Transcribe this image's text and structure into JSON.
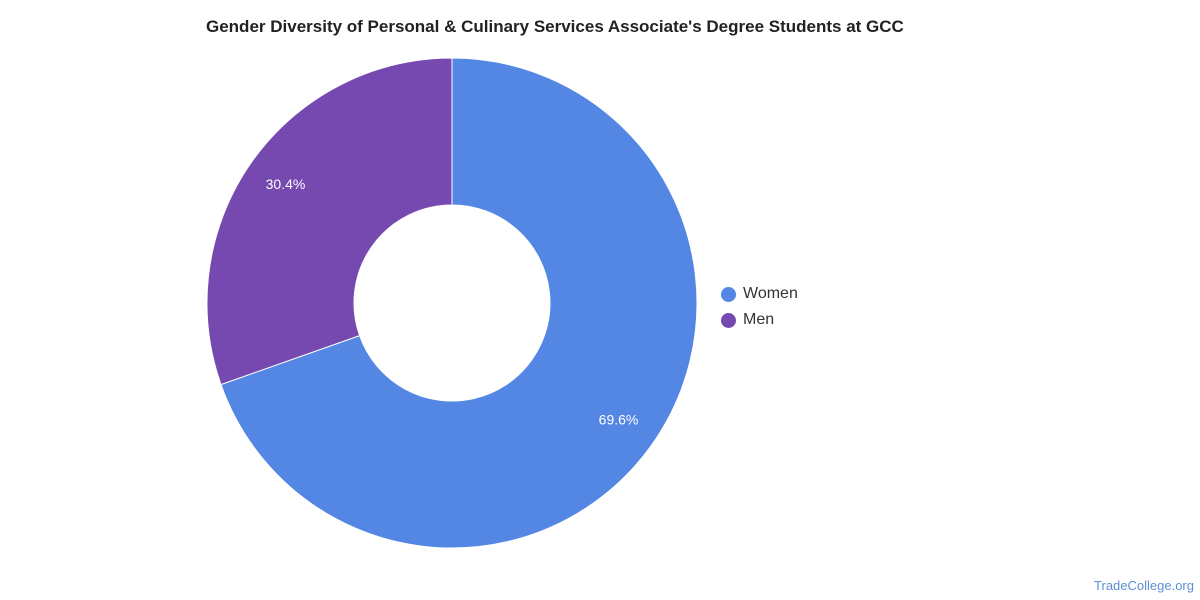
{
  "chart_data": {
    "type": "pie",
    "title": "Gender Diversity of Personal & Culinary Services Associate's Degree Students at GCC",
    "categories": [
      "Women",
      "Men"
    ],
    "values": [
      69.6,
      30.4
    ],
    "value_labels": [
      "69.6%",
      "30.4%"
    ],
    "colors": [
      "#5387e3",
      "#7549b0"
    ],
    "donut": true,
    "legend_position": "right"
  },
  "source_label": "TradeCollege.org"
}
